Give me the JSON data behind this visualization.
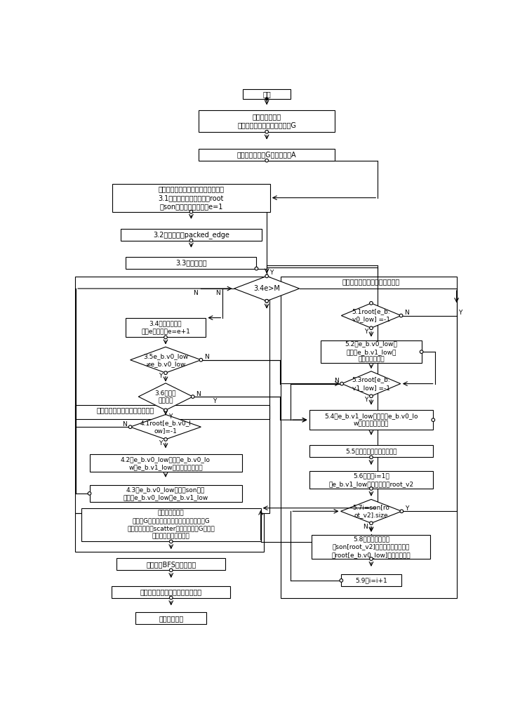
{
  "bg": "#ffffff",
  "fc": "#ffffff",
  "ec": "#000000",
  "tc": "#000000",
  "lw": 0.8,
  "fs": 7.0,
  "fs_small": 6.5,
  "start_text": "开始",
  "s1_text": "第一步、图生成\n通过图生成器生成随机图结构G",
  "s2_text": "第二步、构建图G的邻接矩阵A",
  "s3_text": "第三步、数据结构初始化，去自环边\n3.1数据结构初始化，设置root\n和son向量的初始值，令e=1",
  "s32_text": "3.2创建结构体packed_edge",
  "s33_text": "3.3创建一条边",
  "s34d_text": "3.4e>M",
  "s34b_text": "3.4读边集合，读\n取第e条边，令e=e+1",
  "s35_text": "3.5e_b.v0_low\n≠e_b.v0_low",
  "s36_text": "3.6根顶点\n是否相同",
  "s4_label": "第四步、处理根顶点相同的情况",
  "s41_text": "4.1root[e_b.v0_l\now]=-1",
  "s42_text": "4.2把e_b.v0_low设置成e_b.v0_lo\nw和e_b.v1_low两个顶点的根顶点",
  "s43_text": "4.3在e_b.v0_low对应的son向量\n中插入e_b.v0_low和e_b.v1_low",
  "s5_label": "第五步、处理根顶点不同的情况",
  "s51_text": "5.1root[e_b.\nv0_low] =-1",
  "s52_text": "5.2把e_b.v0_low插\n入到以e_b.v1_low的\n所在的连通分量",
  "s53_text": "5.3root[e_b.\nv1_low] =-1",
  "s54_text": "5.4把e_b.v1_low插入到以e_b.v0_lo\nw的所在的连通分量",
  "s55_text": "5.5比较连通分量的顶点数量",
  "s56_text": "5.6初始化i=1，\n将e_b.v1_low的根顶点记为root_v2",
  "s57_text": "5.7i=son[ro\not_v2].size",
  "s58_text": "5.8执行路径压缩，\n把son[root_v2]中的每个元素均调整\n为root[e_b.v0_low]的直接子顶点",
  "s59_text": "5.9令i=i+1",
  "s6_text": "第六步、图分布\n找出图G所有连通分量，采用连通分量对图G\n进行划分。采用scatter发散操作将图G分布至\n超级计算机各处理节点",
  "s7_text": "第七步、BFS搜索与验证",
  "s8_text": "第八步、计算图测试性能的评价值",
  "s9_text": "第九步、结束"
}
